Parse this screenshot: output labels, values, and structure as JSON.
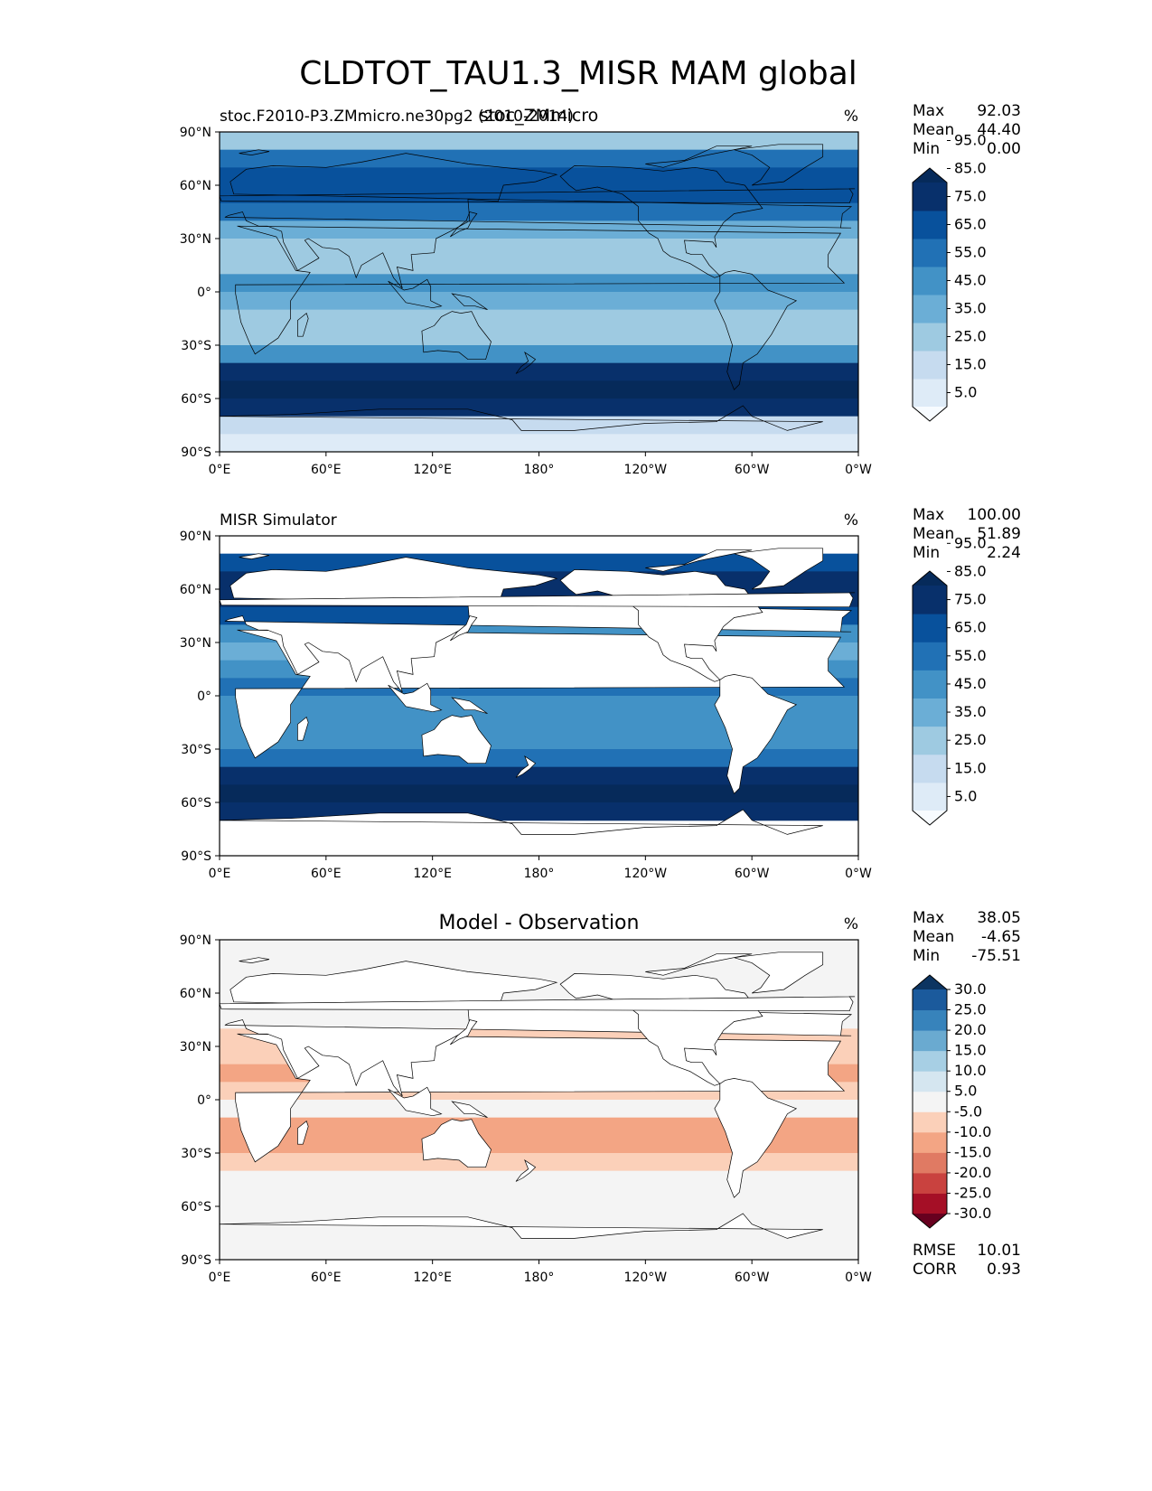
{
  "figure": {
    "title": "CLDTOT_TAU1.3_MISR MAM global"
  },
  "chart_data": [
    {
      "type": "heatmap",
      "name": "model",
      "title_left": "stoc.F2010-P3.ZMmicro.ne30pg2 (2010-2014)",
      "title_center": "stoc_ZMmicro",
      "units": "%",
      "stats": [
        {
          "label": "Max",
          "value": "92.03"
        },
        {
          "label": "Mean",
          "value": "44.40"
        },
        {
          "label": "Min",
          "value": "0.00"
        }
      ],
      "colorbar": {
        "levels": [
          "5.0",
          "15.0",
          "25.0",
          "35.0",
          "45.0",
          "55.0",
          "65.0",
          "75.0",
          "85.0",
          "95.0"
        ],
        "colors": [
          "#f7fbff",
          "#deebf7",
          "#c6dbef",
          "#9ecae1",
          "#6baed6",
          "#4292c6",
          "#2171b5",
          "#08519c",
          "#08306b",
          "#062a5a"
        ]
      },
      "xticks": [
        "0°E",
        "60°E",
        "120°E",
        "180°",
        "120°W",
        "60°W",
        "0°W"
      ],
      "yticks": [
        "90°N",
        "60°N",
        "30°N",
        "0°",
        "30°S",
        "60°S",
        "90°S"
      ],
      "zonal_profile": [
        {
          "lat": 85,
          "v": 30
        },
        {
          "lat": 75,
          "v": 55
        },
        {
          "lat": 65,
          "v": 70
        },
        {
          "lat": 55,
          "v": 65
        },
        {
          "lat": 45,
          "v": 55
        },
        {
          "lat": 35,
          "v": 35
        },
        {
          "lat": 25,
          "v": 25
        },
        {
          "lat": 15,
          "v": 30
        },
        {
          "lat": 5,
          "v": 45
        },
        {
          "lat": -5,
          "v": 40
        },
        {
          "lat": -15,
          "v": 32
        },
        {
          "lat": -25,
          "v": 30
        },
        {
          "lat": -35,
          "v": 45
        },
        {
          "lat": -45,
          "v": 75
        },
        {
          "lat": -55,
          "v": 85
        },
        {
          "lat": -65,
          "v": 80
        },
        {
          "lat": -75,
          "v": 15
        },
        {
          "lat": -85,
          "v": 5
        }
      ]
    },
    {
      "type": "heatmap",
      "name": "observation",
      "title_left": "MISR Simulator",
      "units": "%",
      "stats": [
        {
          "label": "Max",
          "value": "100.00"
        },
        {
          "label": "Mean",
          "value": "51.89"
        },
        {
          "label": "Min",
          "value": "2.24"
        }
      ],
      "colorbar": {
        "levels": [
          "5.0",
          "15.0",
          "25.0",
          "35.0",
          "45.0",
          "55.0",
          "65.0",
          "75.0",
          "85.0",
          "95.0"
        ],
        "colors": [
          "#f7fbff",
          "#deebf7",
          "#c6dbef",
          "#9ecae1",
          "#6baed6",
          "#4292c6",
          "#2171b5",
          "#08519c",
          "#08306b",
          "#062a5a"
        ]
      },
      "xticks": [
        "0°E",
        "60°E",
        "120°E",
        "180°",
        "120°W",
        "60°W",
        "0°W"
      ],
      "yticks": [
        "90°N",
        "60°N",
        "30°N",
        "0°",
        "30°S",
        "60°S",
        "90°S"
      ],
      "zonal_profile": [
        {
          "lat": 75,
          "v": 70
        },
        {
          "lat": 65,
          "v": 75
        },
        {
          "lat": 55,
          "v": 75
        },
        {
          "lat": 45,
          "v": 65
        },
        {
          "lat": 35,
          "v": 50
        },
        {
          "lat": 25,
          "v": 40
        },
        {
          "lat": 15,
          "v": 45
        },
        {
          "lat": 5,
          "v": 55
        },
        {
          "lat": -5,
          "v": 45
        },
        {
          "lat": -15,
          "v": 45
        },
        {
          "lat": -25,
          "v": 45
        },
        {
          "lat": -35,
          "v": 55
        },
        {
          "lat": -45,
          "v": 75
        },
        {
          "lat": -55,
          "v": 85
        },
        {
          "lat": -65,
          "v": 80
        }
      ]
    },
    {
      "type": "heatmap",
      "name": "difference",
      "title_center": "Model - Observation",
      "units": "%",
      "stats": [
        {
          "label": "Max",
          "value": "38.05"
        },
        {
          "label": "Mean",
          "value": "-4.65"
        },
        {
          "label": "Min",
          "value": "-75.51"
        }
      ],
      "extra_stats": [
        {
          "label": "RMSE",
          "value": "10.01"
        },
        {
          "label": "CORR",
          "value": "0.93"
        }
      ],
      "colorbar": {
        "levels": [
          "-30.0",
          "-25.0",
          "-20.0",
          "-15.0",
          "-10.0",
          "-5.0",
          "5.0",
          "10.0",
          "15.0",
          "20.0",
          "25.0",
          "30.0"
        ],
        "colors": [
          "#67001f",
          "#a50f26",
          "#c9423f",
          "#e07a63",
          "#f3a584",
          "#fbd0b9",
          "#f4f4f4",
          "#d5e6f0",
          "#a7cfe4",
          "#6aaad0",
          "#3783bb",
          "#1b5a9c",
          "#0c3461"
        ]
      },
      "xticks": [
        "0°E",
        "60°E",
        "120°E",
        "180°",
        "120°W",
        "60°W",
        "0°W"
      ],
      "yticks": [
        "90°N",
        "60°N",
        "30°N",
        "0°",
        "30°S",
        "60°S",
        "90°S"
      ],
      "zonal_profile": [
        {
          "lat": 75,
          "v": -2
        },
        {
          "lat": 65,
          "v": 0
        },
        {
          "lat": 55,
          "v": -3
        },
        {
          "lat": 45,
          "v": -5
        },
        {
          "lat": 35,
          "v": -8
        },
        {
          "lat": 25,
          "v": -10
        },
        {
          "lat": 15,
          "v": -12
        },
        {
          "lat": 5,
          "v": -6
        },
        {
          "lat": -5,
          "v": -4
        },
        {
          "lat": -15,
          "v": -12
        },
        {
          "lat": -25,
          "v": -12
        },
        {
          "lat": -35,
          "v": -6
        },
        {
          "lat": -45,
          "v": 3
        },
        {
          "lat": -55,
          "v": 2
        },
        {
          "lat": -65,
          "v": -5
        }
      ]
    }
  ]
}
